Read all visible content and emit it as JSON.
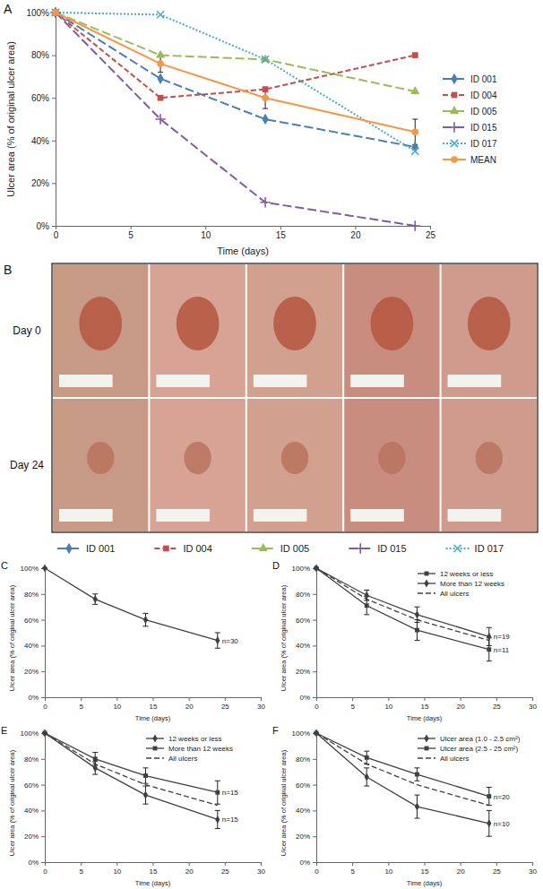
{
  "chart_data": [
    {
      "panel": "A",
      "type": "line",
      "x_label": "Time (days)",
      "y_label": "Ulcer area (% of original ulcer area)",
      "x": [
        0,
        7,
        14,
        24
      ],
      "xlim": [
        0,
        25
      ],
      "xticks": [
        0,
        5,
        10,
        15,
        20,
        25
      ],
      "ylim": [
        0,
        100
      ],
      "yticks": [
        {
          "value": 0,
          "label": "0%"
        },
        {
          "value": 20,
          "label": "20%"
        },
        {
          "value": 40,
          "label": "40%"
        },
        {
          "value": 60,
          "label": "60%"
        },
        {
          "value": 80,
          "label": "80%"
        },
        {
          "value": 100,
          "label": "100%"
        }
      ],
      "grid": false,
      "legend": "right",
      "series": [
        {
          "name": "ID 001",
          "color": "#4a7ebb",
          "marker": "diamond",
          "line_style": "long_dash",
          "values": [
            100,
            69,
            50,
            37
          ]
        },
        {
          "name": "ID 004",
          "color": "#c0504d",
          "marker": "square",
          "line_style": "dashed",
          "values": [
            100,
            60,
            64,
            80
          ]
        },
        {
          "name": "ID 005",
          "color": "#9bbb59",
          "marker": "triangle",
          "line_style": "long_dash",
          "values": [
            100,
            80,
            78,
            63
          ]
        },
        {
          "name": "ID 015",
          "color": "#7f5ba6",
          "marker": "plus",
          "line_style": "long_dash",
          "values": [
            100,
            50,
            11,
            0
          ]
        },
        {
          "name": "ID 017",
          "color": "#4bacc6",
          "marker": "x",
          "line_style": "dotted",
          "values": [
            100,
            99,
            78,
            35
          ]
        },
        {
          "name": "MEAN",
          "color": "#f79646",
          "marker": "circle",
          "line_style": "solid",
          "values": [
            100,
            76,
            60,
            44
          ],
          "errors": [
            0,
            4,
            5,
            6
          ]
        }
      ]
    },
    {
      "panel": "C",
      "type": "line",
      "x_label": "Time (days)",
      "y_label": "Ulcer area (% of original ulcer area)",
      "x": [
        0,
        7,
        14,
        24
      ],
      "xlim": [
        0,
        30
      ],
      "xticks": [
        0,
        5,
        10,
        15,
        20,
        25,
        30
      ],
      "ylim": [
        0,
        100
      ],
      "yticks": [
        {
          "value": 0,
          "label": "0%"
        },
        {
          "value": 20,
          "label": "20%"
        },
        {
          "value": 40,
          "label": "40%"
        },
        {
          "value": 60,
          "label": "60%"
        },
        {
          "value": 80,
          "label": "80%"
        },
        {
          "value": 100,
          "label": "100%"
        }
      ],
      "grid": false,
      "series": [
        {
          "color": "#404040",
          "marker": "diamond",
          "line_style": "solid",
          "values": [
            100,
            76,
            60,
            44
          ],
          "errors": [
            0,
            4,
            5,
            6
          ]
        }
      ],
      "annotations": [
        {
          "text": "n=30",
          "x": 24,
          "y": 44
        }
      ]
    },
    {
      "panel": "D",
      "type": "line",
      "x_label": "Time (days)",
      "y_label": "Ulcer area (% of original ulcer area)",
      "x": [
        0,
        7,
        14,
        24
      ],
      "xlim": [
        0,
        30
      ],
      "xticks": [
        0,
        5,
        10,
        15,
        20,
        25,
        30
      ],
      "ylim": [
        0,
        100
      ],
      "yticks": [
        {
          "value": 0,
          "label": "0%"
        },
        {
          "value": 20,
          "label": "20%"
        },
        {
          "value": 40,
          "label": "40%"
        },
        {
          "value": 60,
          "label": "60%"
        },
        {
          "value": 80,
          "label": "80%"
        },
        {
          "value": 100,
          "label": "100%"
        }
      ],
      "grid": false,
      "legend": "top right",
      "series": [
        {
          "name": "12 weeks or less",
          "color": "#404040",
          "marker": "square",
          "line_style": "solid",
          "values": [
            100,
            71,
            52,
            37
          ],
          "errors": [
            0,
            7,
            8,
            9
          ]
        },
        {
          "name": "More than 12 weeks",
          "color": "#404040",
          "marker": "diamond",
          "line_style": "solid",
          "values": [
            100,
            79,
            64,
            47
          ],
          "errors": [
            0,
            4,
            6,
            7
          ]
        },
        {
          "name": "All ulcers",
          "color": "#404040",
          "marker": "none",
          "line_style": "dashed",
          "values": [
            100,
            76,
            60,
            44
          ]
        }
      ],
      "annotations": [
        {
          "text": "n=19",
          "x": 24,
          "y": 47
        },
        {
          "text": "n=11",
          "x": 24,
          "y": 37
        }
      ]
    },
    {
      "panel": "E",
      "type": "line",
      "x_label": "Time (days)",
      "y_label": "Ulcer area (% of original ulcer area)",
      "x": [
        0,
        7,
        14,
        24
      ],
      "xlim": [
        0,
        30
      ],
      "xticks": [
        0,
        5,
        10,
        15,
        20,
        25,
        30
      ],
      "ylim": [
        0,
        100
      ],
      "yticks": [
        {
          "value": 0,
          "label": "0%"
        },
        {
          "value": 20,
          "label": "20%"
        },
        {
          "value": 40,
          "label": "40%"
        },
        {
          "value": 60,
          "label": "60%"
        },
        {
          "value": 80,
          "label": "80%"
        },
        {
          "value": 100,
          "label": "100%"
        }
      ],
      "grid": false,
      "legend": "top right",
      "series": [
        {
          "name": "12 weeks or less",
          "color": "#404040",
          "marker": "diamond",
          "line_style": "solid",
          "values": [
            100,
            73,
            52,
            33
          ],
          "errors": [
            0,
            5,
            7,
            7
          ]
        },
        {
          "name": "More than 12 weeks",
          "color": "#404040",
          "marker": "square",
          "line_style": "solid",
          "values": [
            100,
            80,
            67,
            54
          ],
          "errors": [
            0,
            5,
            6,
            9
          ]
        },
        {
          "name": "All ulcers",
          "color": "#404040",
          "marker": "none",
          "line_style": "dashed",
          "values": [
            100,
            76,
            60,
            44
          ]
        }
      ],
      "annotations": [
        {
          "text": "n=15",
          "x": 24,
          "y": 54
        },
        {
          "text": "n=15",
          "x": 24,
          "y": 33
        }
      ]
    },
    {
      "panel": "F",
      "type": "line",
      "x_label": "Time (days)",
      "y_label": "Ulcer area (% of original ulcer area)",
      "x": [
        0,
        7,
        14,
        24
      ],
      "xlim": [
        0,
        30
      ],
      "xticks": [
        0,
        5,
        10,
        15,
        20,
        25,
        30
      ],
      "ylim": [
        0,
        100
      ],
      "yticks": [
        {
          "value": 0,
          "label": "0%"
        },
        {
          "value": 20,
          "label": "20%"
        },
        {
          "value": 40,
          "label": "40%"
        },
        {
          "value": 60,
          "label": "60%"
        },
        {
          "value": 80,
          "label": "80%"
        },
        {
          "value": 100,
          "label": "100%"
        }
      ],
      "grid": false,
      "legend": "top right",
      "series": [
        {
          "name": "Ulcer area (1.0 - 2.5 cm²)",
          "color": "#404040",
          "marker": "diamond",
          "line_style": "solid",
          "values": [
            100,
            66,
            43,
            30
          ],
          "errors": [
            0,
            7,
            9,
            10
          ]
        },
        {
          "name": "Ulcer area (2.5 - 25 cm²)",
          "color": "#404040",
          "marker": "square",
          "line_style": "solid",
          "values": [
            100,
            81,
            68,
            51
          ],
          "errors": [
            0,
            5,
            5,
            7
          ]
        },
        {
          "name": "All ulcers",
          "color": "#404040",
          "marker": "none",
          "line_style": "dashed",
          "values": [
            100,
            76,
            60,
            44
          ]
        }
      ],
      "annotations": [
        {
          "text": "n=20",
          "x": 24,
          "y": 51
        },
        {
          "text": "n=10",
          "x": 24,
          "y": 30
        }
      ]
    }
  ],
  "photo_panel": {
    "panel": "B",
    "rows": [
      "Day 0",
      "Day 24"
    ],
    "legend": [
      {
        "name": "ID 001",
        "color": "#4a7ebb",
        "marker": "diamond",
        "line_style": "long_dash"
      },
      {
        "name": "ID 004",
        "color": "#c0504d",
        "marker": "square",
        "line_style": "dashed"
      },
      {
        "name": "ID 005",
        "color": "#9bbb59",
        "marker": "triangle",
        "line_style": "long_dash"
      },
      {
        "name": "ID 015",
        "color": "#7f5ba6",
        "marker": "plus",
        "line_style": "long_dash"
      },
      {
        "name": "ID 017",
        "color": "#4bacc6",
        "marker": "x",
        "line_style": "dotted"
      }
    ]
  }
}
